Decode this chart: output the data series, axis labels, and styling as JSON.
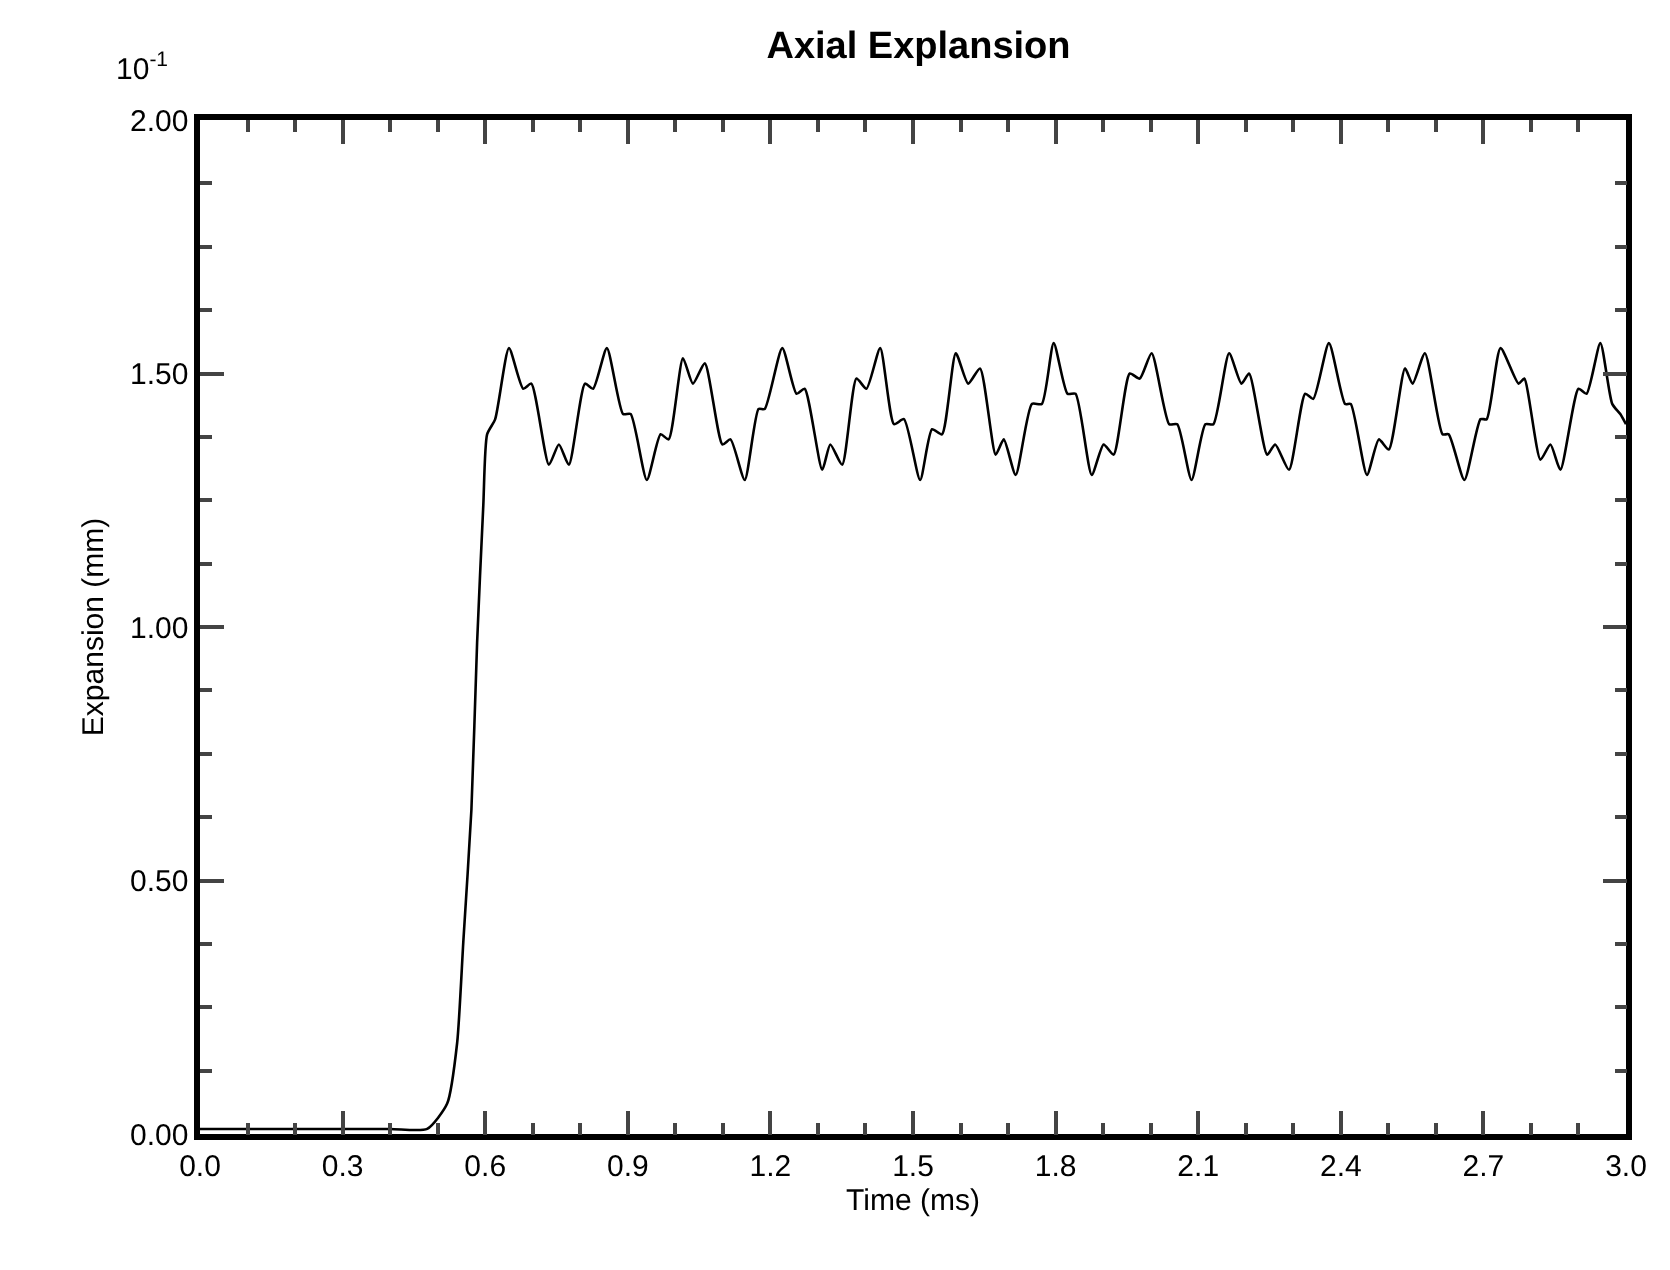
{
  "chart_data": {
    "type": "line",
    "title": "Axial Explansion",
    "xlabel": "Time (ms)",
    "ylabel": "Expansion (mm)",
    "annotations": [
      "10$^{-1}$"
    ],
    "xlim": [
      0,
      3
    ],
    "ylim": [
      0,
      2
    ],
    "xticks": [
      {
        "value": 0,
        "label": "0.0"
      },
      {
        "value": 0.3,
        "label": "0.3"
      },
      {
        "value": 0.6,
        "label": "0.6"
      },
      {
        "value": 0.9,
        "label": "0.9"
      },
      {
        "value": 1.2,
        "label": "1.2"
      },
      {
        "value": 1.5,
        "label": "1.5"
      },
      {
        "value": 1.8,
        "label": "1.8"
      },
      {
        "value": 2.1,
        "label": "2.1"
      },
      {
        "value": 2.4,
        "label": "2.4"
      },
      {
        "value": 2.7,
        "label": "2.7"
      },
      {
        "value": 3,
        "label": "3.0"
      }
    ],
    "yticks": [
      {
        "value": 0,
        "label": "0.00"
      },
      {
        "value": 0.5,
        "label": "0.50"
      },
      {
        "value": 1,
        "label": "1.00"
      },
      {
        "value": 1.5,
        "label": "1.50"
      },
      {
        "value": 2,
        "label": "2.00"
      }
    ],
    "marker": "none",
    "line_style": "solid",
    "series": [
      {
        "color": "#000000",
        "x": [
          0,
          0.2,
          0.4,
          0.478,
          0.52,
          0.541,
          0.554,
          0.571,
          0.583,
          0.596,
          0.604,
          0.621,
          0.65,
          0.68,
          0.697,
          0.734,
          0.755,
          0.776,
          0.81,
          0.827,
          0.856,
          0.89,
          0.906,
          0.94,
          0.969,
          0.986,
          1.016,
          1.037,
          1.062,
          1.099,
          1.116,
          1.146,
          1.175,
          1.188,
          1.225,
          1.255,
          1.272,
          1.309,
          1.326,
          1.351,
          1.381,
          1.402,
          1.431,
          1.46,
          1.481,
          1.515,
          1.54,
          1.561,
          1.59,
          1.616,
          1.641,
          1.674,
          1.691,
          1.716,
          1.75,
          1.771,
          1.796,
          1.825,
          1.842,
          1.876,
          1.901,
          1.922,
          1.956,
          1.977,
          2.002,
          2.039,
          2.056,
          2.086,
          2.115,
          2.132,
          2.165,
          2.191,
          2.207,
          2.245,
          2.262,
          2.291,
          2.325,
          2.342,
          2.375,
          2.409,
          2.421,
          2.455,
          2.48,
          2.501,
          2.535,
          2.551,
          2.577,
          2.614,
          2.627,
          2.66,
          2.694,
          2.707,
          2.736,
          2.774,
          2.786,
          2.82,
          2.841,
          2.862,
          2.9,
          2.917,
          2.946,
          2.971,
          2.988,
          3.0
        ],
        "values": [
          0.01,
          0.01,
          0.01,
          0.01,
          0.06,
          0.18,
          0.38,
          0.64,
          0.97,
          1.24,
          1.38,
          1.41,
          1.55,
          1.47,
          1.48,
          1.32,
          1.36,
          1.32,
          1.48,
          1.47,
          1.55,
          1.42,
          1.42,
          1.29,
          1.38,
          1.37,
          1.53,
          1.48,
          1.52,
          1.36,
          1.37,
          1.29,
          1.43,
          1.43,
          1.55,
          1.46,
          1.47,
          1.31,
          1.36,
          1.32,
          1.49,
          1.47,
          1.55,
          1.4,
          1.41,
          1.29,
          1.39,
          1.38,
          1.54,
          1.48,
          1.51,
          1.34,
          1.37,
          1.3,
          1.44,
          1.44,
          1.56,
          1.46,
          1.46,
          1.3,
          1.36,
          1.34,
          1.5,
          1.49,
          1.54,
          1.4,
          1.4,
          1.29,
          1.4,
          1.4,
          1.54,
          1.48,
          1.5,
          1.34,
          1.36,
          1.31,
          1.46,
          1.45,
          1.56,
          1.44,
          1.44,
          1.3,
          1.37,
          1.35,
          1.51,
          1.48,
          1.54,
          1.38,
          1.38,
          1.29,
          1.41,
          1.41,
          1.55,
          1.48,
          1.49,
          1.33,
          1.36,
          1.31,
          1.47,
          1.46,
          1.56,
          1.44,
          1.42,
          1.4
        ]
      }
    ]
  }
}
